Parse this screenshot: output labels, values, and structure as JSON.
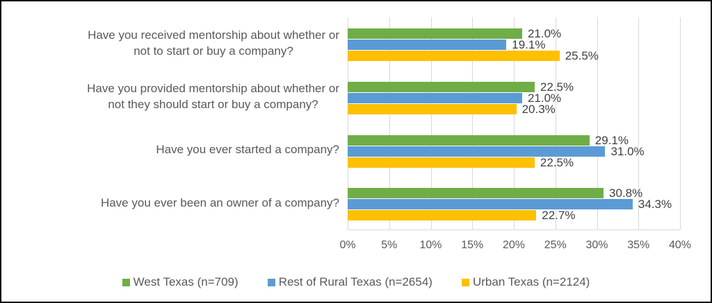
{
  "chart_data": {
    "type": "bar",
    "orientation": "horizontal",
    "title": "",
    "xlabel": "",
    "ylabel": "",
    "xlim": [
      0,
      40
    ],
    "x_ticks": [
      "0%",
      "5%",
      "10%",
      "15%",
      "20%",
      "25%",
      "30%",
      "35%",
      "40%"
    ],
    "grid": "vertical",
    "legend_position": "bottom",
    "data_label_format": "one_decimal_percent",
    "categories": [
      "Have you received mentorship about whether or\nnot to start or buy a company?",
      "Have you provided mentorship about whether or\nnot they should start or buy a company?",
      "Have you ever started a company?",
      "Have you ever been an owner of a company?"
    ],
    "series": [
      {
        "name": "West Texas (n=709)",
        "key": "west-texas",
        "color": "#70AD47",
        "values": [
          21.0,
          22.5,
          29.1,
          30.8
        ]
      },
      {
        "name": "Rest of Rural Texas (n=2654)",
        "key": "rest-of-rural-texas",
        "color": "#5B9BD5",
        "values": [
          19.1,
          21.0,
          31.0,
          34.3
        ]
      },
      {
        "name": "Urban Texas (n=2124)",
        "key": "urban-texas",
        "color": "#FFC000",
        "values": [
          25.5,
          20.3,
          22.5,
          22.7
        ]
      }
    ],
    "colors": {
      "gridline": "#d9d9d9",
      "axis_text": "#595959",
      "data_label_text": "#404040",
      "border": "#000000"
    }
  }
}
